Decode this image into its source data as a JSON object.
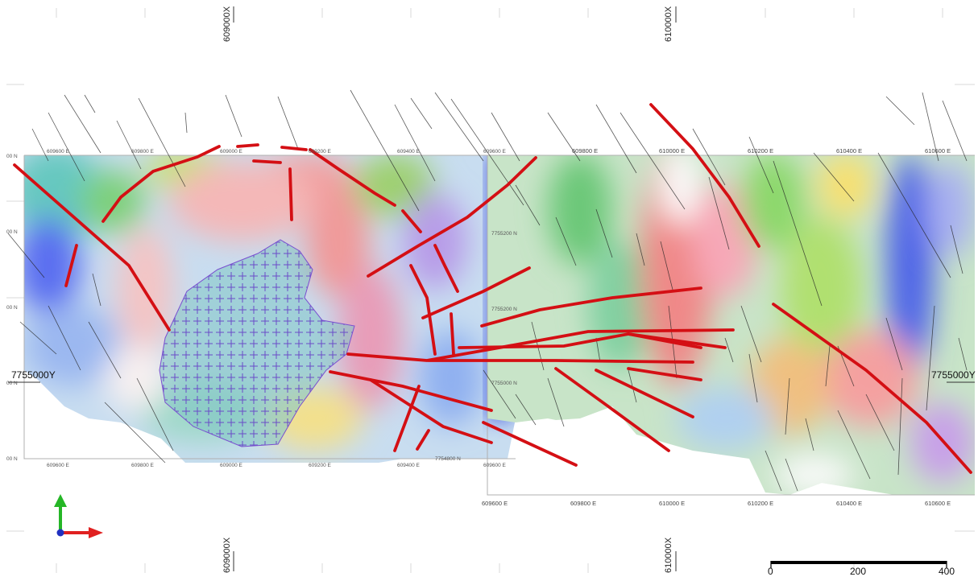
{
  "map": {
    "top_axis_labels": [
      "609000X",
      "610000X"
    ],
    "bottom_axis_labels": [
      "609000X",
      "610000X"
    ],
    "side_labels": {
      "left": "7755000Y",
      "right": "7755000Y"
    },
    "left_grid_easting_top": [
      "609600 E",
      "609800 E",
      "609000 E",
      "609200 E",
      "609400 E",
      "609600 E"
    ],
    "left_grid_easting_bottom": [
      "609600 E",
      "609800 E",
      "609000 E",
      "609200 E",
      "609400 E",
      "609600 E"
    ],
    "left_grid_northing": [
      "00 N",
      "00 N",
      "00 N",
      "00 N",
      "00 N"
    ],
    "right_grid_easting_top": [
      "609800 E",
      "610000 E",
      "610200 E",
      "610400 E",
      "610600 E"
    ],
    "right_grid_easting_bottom": [
      "609600 E",
      "609800 E",
      "610000 E",
      "610200 E",
      "610400 E",
      "610600 E"
    ],
    "inner_northing": [
      "7755200 N",
      "7755200 N",
      "7755000 N",
      "7754800 N"
    ],
    "colors": {
      "fault": "#d40f14",
      "axis_up": "#25b626",
      "axis_right": "#e02020",
      "axis_origin": "#2030c0",
      "intrusion_outline": "#7a4fd0",
      "scale_bar": "#000000"
    },
    "scale_bar": {
      "labels": [
        "0",
        "200",
        "400"
      ]
    },
    "north_arrow": {
      "icon": "axis-triad-icon"
    }
  }
}
